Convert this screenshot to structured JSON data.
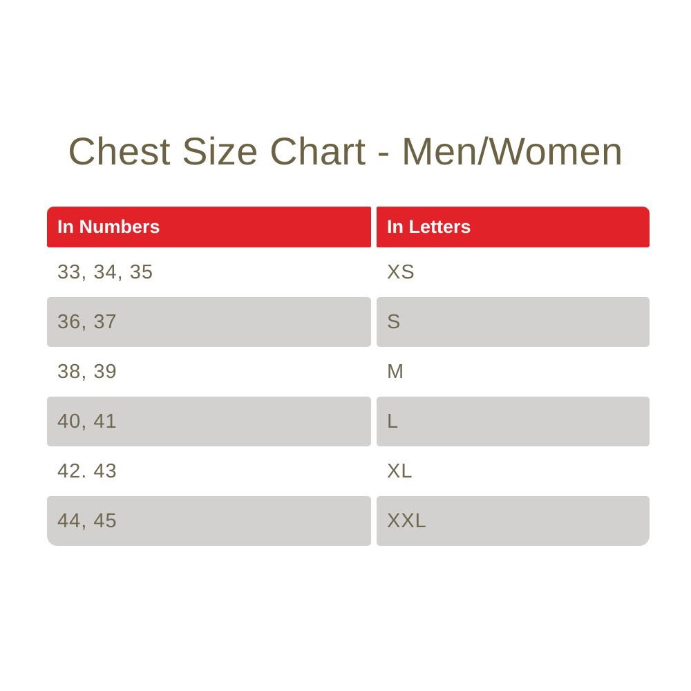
{
  "title": "Chest Size Chart - Men/Women",
  "colors": {
    "header_bg": "#e12228",
    "header_text": "#ffffff",
    "alt_row_bg": "#d2d1cf",
    "body_text": "#6f6850",
    "title_text": "#6b6244",
    "page_bg": "#ffffff"
  },
  "table": {
    "header": {
      "columns": [
        "In Numbers",
        "In Letters"
      ]
    },
    "rows": [
      {
        "numbers": "33, 34, 35",
        "letters": "XS"
      },
      {
        "numbers": "36, 37",
        "letters": "S"
      },
      {
        "numbers": "38, 39",
        "letters": "M"
      },
      {
        "numbers": "40, 41",
        "letters": "L"
      },
      {
        "numbers": "42. 43",
        "letters": "XL"
      },
      {
        "numbers": "44, 45",
        "letters": "XXL"
      }
    ]
  }
}
